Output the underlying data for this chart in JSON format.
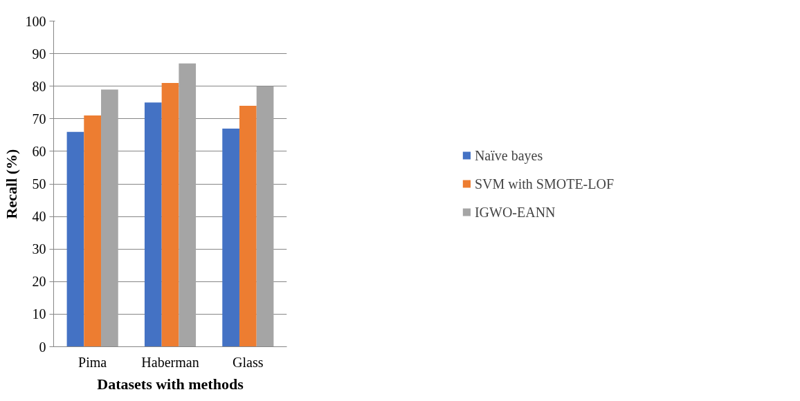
{
  "chart_data": {
    "type": "bar",
    "xlabel": "Datasets with methods",
    "ylabel": "Recall (%)",
    "categories": [
      "Pima",
      "Haberman",
      "Glass"
    ],
    "series": [
      {
        "name": "Naïve bayes",
        "color": "#4472c4",
        "values": [
          66,
          75,
          67
        ]
      },
      {
        "name": "SVM with SMOTE-LOF",
        "color": "#ed7d31",
        "values": [
          71,
          81,
          74
        ]
      },
      {
        "name": "IGWO-EANN",
        "color": "#a5a5a5",
        "values": [
          79,
          87,
          80
        ]
      }
    ],
    "ylim": [
      0,
      100
    ],
    "yticks": [
      0,
      10,
      20,
      30,
      40,
      50,
      60,
      70,
      80,
      90,
      100
    ],
    "grid": "y",
    "legend": "right"
  }
}
